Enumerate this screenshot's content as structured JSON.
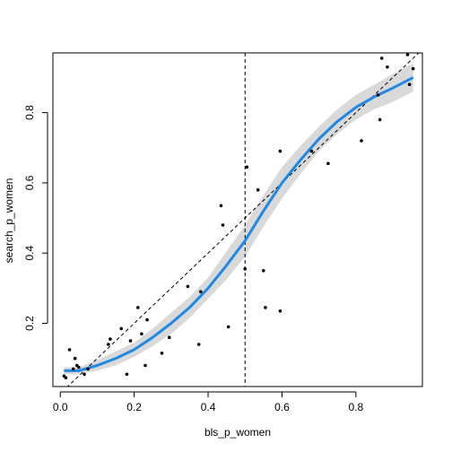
{
  "chart_data": {
    "type": "scatter",
    "title": "",
    "xlabel": "bls_p_women",
    "ylabel": "search_p_women",
    "xlim": [
      -0.02,
      0.98
    ],
    "ylim": [
      0.02,
      0.97
    ],
    "x_ticks": [
      0.0,
      0.2,
      0.4,
      0.6,
      0.8
    ],
    "y_ticks": [
      0.2,
      0.4,
      0.6,
      0.8
    ],
    "x_tick_labels": [
      "0.0",
      "0.2",
      "0.4",
      "0.6",
      "0.8"
    ],
    "y_tick_labels": [
      "0.2",
      "0.4",
      "0.6",
      "0.8"
    ],
    "grid": false,
    "reference_vline_x": 0.5,
    "identity_line": true,
    "colors": {
      "points": "#000000",
      "smooth": "#1e88e5",
      "band": "#d9d9d9"
    },
    "points": [
      [
        0.01,
        0.05
      ],
      [
        0.015,
        0.045
      ],
      [
        0.025,
        0.125
      ],
      [
        0.035,
        0.07
      ],
      [
        0.04,
        0.1
      ],
      [
        0.045,
        0.08
      ],
      [
        0.05,
        0.075
      ],
      [
        0.065,
        0.055
      ],
      [
        0.075,
        0.07
      ],
      [
        0.13,
        0.14
      ],
      [
        0.135,
        0.155
      ],
      [
        0.165,
        0.185
      ],
      [
        0.18,
        0.055
      ],
      [
        0.19,
        0.15
      ],
      [
        0.21,
        0.245
      ],
      [
        0.22,
        0.17
      ],
      [
        0.23,
        0.08
      ],
      [
        0.235,
        0.21
      ],
      [
        0.275,
        0.115
      ],
      [
        0.295,
        0.16
      ],
      [
        0.345,
        0.305
      ],
      [
        0.375,
        0.14
      ],
      [
        0.38,
        0.29
      ],
      [
        0.435,
        0.535
      ],
      [
        0.44,
        0.48
      ],
      [
        0.455,
        0.19
      ],
      [
        0.5,
        0.355
      ],
      [
        0.505,
        0.645
      ],
      [
        0.535,
        0.58
      ],
      [
        0.55,
        0.35
      ],
      [
        0.555,
        0.245
      ],
      [
        0.595,
        0.235
      ],
      [
        0.595,
        0.69
      ],
      [
        0.68,
        0.69
      ],
      [
        0.725,
        0.655
      ],
      [
        0.815,
        0.72
      ],
      [
        0.86,
        0.85
      ],
      [
        0.865,
        0.78
      ],
      [
        0.87,
        0.955
      ],
      [
        0.885,
        0.93
      ],
      [
        0.94,
        0.965
      ],
      [
        0.945,
        0.88
      ],
      [
        0.955,
        0.925
      ]
    ],
    "smooth_line": [
      [
        0.01,
        0.065
      ],
      [
        0.05,
        0.065
      ],
      [
        0.1,
        0.08
      ],
      [
        0.15,
        0.1
      ],
      [
        0.2,
        0.125
      ],
      [
        0.25,
        0.16
      ],
      [
        0.3,
        0.2
      ],
      [
        0.35,
        0.245
      ],
      [
        0.4,
        0.3
      ],
      [
        0.45,
        0.365
      ],
      [
        0.5,
        0.435
      ],
      [
        0.55,
        0.52
      ],
      [
        0.6,
        0.6
      ],
      [
        0.65,
        0.665
      ],
      [
        0.7,
        0.725
      ],
      [
        0.75,
        0.775
      ],
      [
        0.8,
        0.815
      ],
      [
        0.85,
        0.845
      ],
      [
        0.9,
        0.87
      ],
      [
        0.955,
        0.9
      ]
    ],
    "band_upper": [
      [
        0.01,
        0.075
      ],
      [
        0.05,
        0.075
      ],
      [
        0.1,
        0.095
      ],
      [
        0.15,
        0.12
      ],
      [
        0.2,
        0.145
      ],
      [
        0.25,
        0.185
      ],
      [
        0.3,
        0.23
      ],
      [
        0.35,
        0.275
      ],
      [
        0.4,
        0.33
      ],
      [
        0.45,
        0.405
      ],
      [
        0.5,
        0.48
      ],
      [
        0.55,
        0.565
      ],
      [
        0.6,
        0.645
      ],
      [
        0.65,
        0.705
      ],
      [
        0.7,
        0.76
      ],
      [
        0.75,
        0.81
      ],
      [
        0.8,
        0.85
      ],
      [
        0.85,
        0.88
      ],
      [
        0.9,
        0.91
      ],
      [
        0.955,
        0.94
      ]
    ],
    "band_lower": [
      [
        0.01,
        0.055
      ],
      [
        0.05,
        0.055
      ],
      [
        0.1,
        0.065
      ],
      [
        0.15,
        0.08
      ],
      [
        0.2,
        0.105
      ],
      [
        0.25,
        0.135
      ],
      [
        0.3,
        0.17
      ],
      [
        0.35,
        0.215
      ],
      [
        0.4,
        0.27
      ],
      [
        0.45,
        0.325
      ],
      [
        0.5,
        0.39
      ],
      [
        0.55,
        0.475
      ],
      [
        0.6,
        0.555
      ],
      [
        0.65,
        0.625
      ],
      [
        0.7,
        0.69
      ],
      [
        0.75,
        0.74
      ],
      [
        0.8,
        0.78
      ],
      [
        0.85,
        0.81
      ],
      [
        0.9,
        0.83
      ],
      [
        0.955,
        0.86
      ]
    ]
  }
}
